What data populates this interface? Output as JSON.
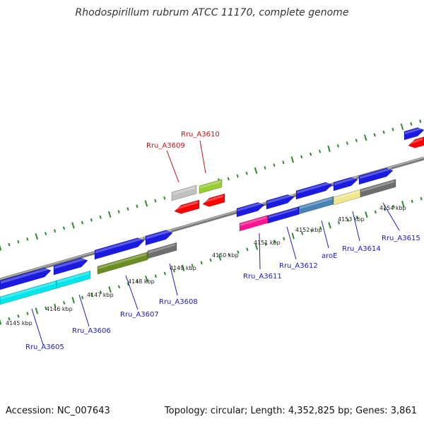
{
  "title": "Rhodospirillum rubrum ATCC 11170, complete genome",
  "footer": {
    "accession": "Accession: NC_007643",
    "summary": "Topology: circular; Length: 4,352,825 bp; Genes: 3,861"
  },
  "colors": {
    "forward_gene": "#1a1ae0",
    "reverse_gene": "#ff0000",
    "backbone": "#8a8a8a",
    "tick": "#2e8b2e",
    "forward_label": "#1a1acc",
    "reverse_label": "#cc1111",
    "ruler_label": "#222222"
  },
  "ruler": {
    "unit": "kbp",
    "labels": [
      "4145 kbp",
      "4146 kbp",
      "4147 kbp",
      "4148 kbp",
      "4149 kbp",
      "4150 kbp",
      "4151 kbp",
      "4152 kbp",
      "4153 kbp",
      "4154 kbp"
    ]
  },
  "gene_labels": {
    "forward": [
      "Rru_A3605",
      "Rru_A3606",
      "Rru_A3607",
      "Rru_A3608",
      "Rru_A3611",
      "Rru_A3612",
      "aroE",
      "Rru_A3614",
      "Rru_A3615"
    ],
    "reverse": [
      "Rru_A3609",
      "Rru_A3610"
    ]
  }
}
